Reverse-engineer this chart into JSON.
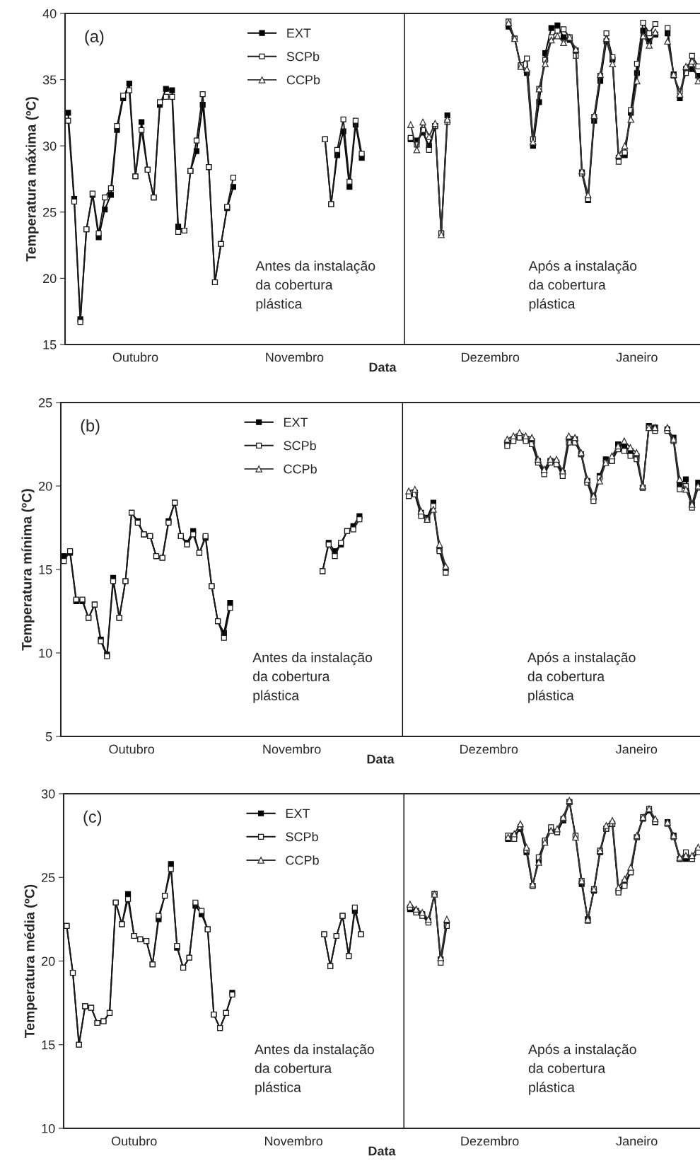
{
  "chart_data": [
    {
      "type": "line",
      "title": "(a)",
      "ylabel": "Temperatura máxima (ºC)",
      "xlabel": "Data",
      "categories": [
        null,
        null,
        null,
        null,
        null,
        null,
        null,
        null,
        null,
        null,
        null,
        "Outubro",
        null,
        null,
        null,
        null,
        null,
        null,
        null,
        null,
        null,
        null,
        null,
        null,
        null,
        null,
        null,
        null,
        null,
        null,
        null,
        null,
        null,
        null,
        null,
        null,
        null,
        "Novembro",
        null,
        null,
        null,
        null,
        null,
        null,
        null,
        null,
        null,
        null,
        null,
        null,
        null,
        null,
        null,
        null,
        null,
        null,
        null,
        null,
        null,
        null,
        null,
        null,
        null,
        null,
        null,
        null,
        null,
        null,
        null,
        "Dezembro",
        null,
        null,
        null,
        null,
        null,
        null,
        null,
        null,
        null,
        null,
        null,
        null,
        null,
        null,
        null,
        null,
        null,
        null,
        null,
        null,
        null,
        null,
        null,
        "Janeiro",
        null,
        null,
        null,
        null,
        null,
        null,
        null,
        null,
        null,
        null
      ],
      "ylim": [
        15,
        40
      ],
      "yticks": [
        15,
        20,
        25,
        30,
        35,
        40
      ],
      "series": [
        {
          "name": "EXT",
          "color": "#000000",
          "marker": "square",
          "values": [
            32.5,
            26.0,
            16.9,
            23.7,
            26.3,
            23.1,
            25.2,
            26.3,
            31.2,
            33.6,
            34.7,
            27.7,
            31.8,
            28.2,
            26.1,
            33.1,
            34.3,
            34.2,
            23.9,
            23.6,
            28.1,
            29.6,
            33.1,
            28.4,
            19.7,
            22.6,
            25.3,
            26.9,
            null,
            null,
            null,
            null,
            null,
            null,
            null,
            null,
            null,
            null,
            null,
            null,
            null,
            null,
            30.5,
            25.6,
            29.3,
            31.1,
            26.9,
            31.6,
            29.1,
            null,
            null,
            null,
            null,
            null,
            null,
            null,
            30.5,
            30.4,
            31.0,
            30.0,
            31.5,
            23.4,
            32.3,
            null,
            null,
            null,
            null,
            null,
            null,
            null,
            null,
            null,
            39.0,
            38.1,
            36.0,
            35.5,
            30.0,
            33.3,
            37.0,
            38.9,
            39.1,
            38.2,
            38.0,
            37.2,
            28.0,
            25.9,
            31.9,
            34.9,
            37.9,
            36.5,
            29.1,
            29.3,
            32.5,
            35.5,
            38.7,
            37.9,
            38.4,
            null,
            38.5,
            35.4,
            33.6,
            35.8,
            35.8,
            35.3
          ]
        },
        {
          "name": "SCPb",
          "color": "#1a1a1a",
          "marker": "square",
          "values": [
            31.9,
            25.8,
            16.7,
            23.7,
            26.4,
            23.4,
            26.1,
            26.8,
            31.5,
            33.8,
            34.2,
            27.7,
            31.2,
            28.2,
            26.1,
            33.3,
            33.7,
            33.7,
            23.5,
            23.6,
            28.1,
            30.4,
            33.9,
            28.4,
            19.7,
            22.6,
            25.4,
            27.6,
            null,
            null,
            null,
            null,
            null,
            null,
            null,
            null,
            null,
            null,
            null,
            null,
            null,
            null,
            30.5,
            25.6,
            29.7,
            32.0,
            27.3,
            31.9,
            29.4,
            null,
            null,
            null,
            null,
            null,
            null,
            null,
            30.6,
            30.1,
            31.2,
            29.7,
            31.5,
            23.4,
            31.8,
            null,
            null,
            null,
            null,
            null,
            null,
            null,
            null,
            null,
            39.4,
            38.1,
            36.1,
            36.6,
            30.5,
            34.3,
            36.5,
            38.2,
            38.7,
            38.8,
            38.2,
            36.8,
            27.9,
            26.0,
            32.2,
            35.3,
            38.5,
            36.7,
            28.8,
            29.5,
            32.7,
            36.2,
            39.3,
            38.5,
            39.2,
            null,
            38.9,
            35.3,
            34.1,
            35.5,
            36.8,
            36.0
          ]
        },
        {
          "name": "CCPb",
          "color": "#333333",
          "marker": "triangle",
          "values": [
            null,
            null,
            null,
            null,
            null,
            null,
            null,
            null,
            null,
            null,
            null,
            null,
            null,
            null,
            null,
            null,
            null,
            null,
            null,
            null,
            null,
            null,
            null,
            null,
            null,
            null,
            null,
            null,
            null,
            null,
            null,
            null,
            null,
            null,
            null,
            null,
            null,
            null,
            null,
            null,
            null,
            null,
            null,
            null,
            null,
            null,
            null,
            null,
            null,
            null,
            null,
            null,
            null,
            null,
            null,
            null,
            31.6,
            29.7,
            31.8,
            30.7,
            31.7,
            23.3,
            32.0,
            null,
            null,
            null,
            null,
            null,
            null,
            null,
            null,
            null,
            39.3,
            38.1,
            36.0,
            35.8,
            30.3,
            34.3,
            36.2,
            38.0,
            38.3,
            37.8,
            38.2,
            37.3,
            28.1,
            26.3,
            32.3,
            35.4,
            38.1,
            36.2,
            29.3,
            30.0,
            32.0,
            34.9,
            38.3,
            37.6,
            38.6,
            null,
            37.9,
            35.4,
            33.9,
            36.0,
            36.4,
            34.9
          ]
        }
      ],
      "annotations": [
        "Antes da instalação\nda cobertura\nplástica",
        "Após a instalação\nda cobertura\nplástica"
      ],
      "legend": "top left",
      "line_style": "solid",
      "grid": false
    },
    {
      "type": "line",
      "title": "(b)",
      "ylabel": "Temperatura mínima (ºC)",
      "xlabel": "Data",
      "categories": [
        null,
        null,
        null,
        null,
        null,
        null,
        null,
        null,
        null,
        null,
        null,
        "Outubro",
        null,
        null,
        null,
        null,
        null,
        null,
        null,
        null,
        null,
        null,
        null,
        null,
        null,
        null,
        null,
        null,
        null,
        null,
        null,
        null,
        null,
        null,
        null,
        null,
        null,
        "Novembro",
        null,
        null,
        null,
        null,
        null,
        null,
        null,
        null,
        null,
        null,
        null,
        null,
        null,
        null,
        null,
        null,
        null,
        null,
        null,
        null,
        null,
        null,
        null,
        null,
        null,
        null,
        null,
        null,
        null,
        null,
        null,
        "Dezembro",
        null,
        null,
        null,
        null,
        null,
        null,
        null,
        null,
        null,
        null,
        null,
        null,
        null,
        null,
        null,
        null,
        null,
        null,
        null,
        null,
        null,
        null,
        null,
        "Janeiro",
        null,
        null,
        null,
        null,
        null,
        null,
        null,
        null,
        null,
        null
      ],
      "ylim": [
        5,
        25
      ],
      "yticks": [
        5,
        10,
        15,
        20,
        25
      ],
      "series": [
        {
          "name": "EXT",
          "color": "#000000",
          "marker": "square",
          "values": [
            15.8,
            16.0,
            13.1,
            13.1,
            12.1,
            12.9,
            10.8,
            9.9,
            14.5,
            12.1,
            14.3,
            18.4,
            17.9,
            17.1,
            17.0,
            15.8,
            15.7,
            17.9,
            19.0,
            17.0,
            16.6,
            17.3,
            16.0,
            16.9,
            14.0,
            11.9,
            11.2,
            13.0,
            null,
            null,
            null,
            null,
            null,
            null,
            null,
            null,
            null,
            null,
            null,
            null,
            null,
            null,
            14.9,
            16.6,
            16.1,
            16.5,
            17.3,
            17.6,
            18.2,
            null,
            null,
            null,
            null,
            null,
            null,
            null,
            19.4,
            19.6,
            18.4,
            18.1,
            19.0,
            16.2,
            15.0,
            null,
            null,
            null,
            null,
            null,
            null,
            null,
            null,
            null,
            22.6,
            22.8,
            23.0,
            22.8,
            22.7,
            21.5,
            20.9,
            21.5,
            21.4,
            20.8,
            22.8,
            22.8,
            21.9,
            20.3,
            19.3,
            20.6,
            21.6,
            21.5,
            22.5,
            22.4,
            22.1,
            21.8,
            19.9,
            23.6,
            23.5,
            null,
            23.4,
            22.9,
            20.1,
            20.4,
            18.9,
            20.2
          ]
        },
        {
          "name": "SCPb",
          "color": "#1a1a1a",
          "marker": "square",
          "values": [
            15.5,
            16.1,
            13.2,
            13.2,
            12.1,
            12.9,
            10.7,
            9.8,
            14.3,
            12.1,
            14.3,
            18.4,
            17.8,
            17.1,
            17.0,
            15.8,
            15.7,
            17.8,
            19.0,
            17.0,
            16.5,
            17.1,
            16.0,
            17.0,
            14.0,
            11.9,
            10.9,
            12.7,
            null,
            null,
            null,
            null,
            null,
            null,
            null,
            null,
            null,
            null,
            null,
            null,
            null,
            null,
            14.9,
            16.5,
            15.8,
            16.6,
            17.3,
            17.4,
            18.0,
            null,
            null,
            null,
            null,
            null,
            null,
            null,
            19.4,
            19.5,
            18.2,
            18.0,
            18.8,
            16.1,
            14.8,
            null,
            null,
            null,
            null,
            null,
            null,
            null,
            null,
            null,
            22.4,
            22.7,
            22.9,
            22.7,
            22.5,
            21.4,
            20.7,
            21.4,
            21.3,
            20.6,
            22.6,
            22.6,
            21.9,
            20.2,
            19.1,
            20.5,
            21.4,
            21.5,
            22.2,
            22.1,
            21.8,
            21.6,
            19.9,
            23.5,
            23.3,
            null,
            23.3,
            22.7,
            19.8,
            20.0,
            18.7,
            19.9
          ]
        },
        {
          "name": "CCPb",
          "color": "#333333",
          "marker": "triangle",
          "values": [
            null,
            null,
            null,
            null,
            null,
            null,
            null,
            null,
            null,
            null,
            null,
            null,
            null,
            null,
            null,
            null,
            null,
            null,
            null,
            null,
            null,
            null,
            null,
            null,
            null,
            null,
            null,
            null,
            null,
            null,
            null,
            null,
            null,
            null,
            null,
            null,
            null,
            null,
            null,
            null,
            null,
            null,
            null,
            null,
            null,
            null,
            null,
            null,
            null,
            null,
            null,
            null,
            null,
            null,
            null,
            null,
            19.7,
            19.8,
            18.5,
            18.0,
            18.6,
            16.5,
            15.2,
            null,
            null,
            null,
            null,
            null,
            null,
            null,
            null,
            null,
            22.8,
            23.0,
            23.2,
            23.0,
            22.9,
            21.6,
            21.0,
            21.6,
            21.6,
            20.9,
            23.0,
            22.9,
            22.0,
            20.4,
            19.4,
            20.3,
            21.4,
            21.8,
            22.4,
            22.7,
            22.3,
            22.0,
            20.0,
            23.5,
            23.5,
            null,
            23.5,
            22.8,
            20.4,
            19.8,
            18.9,
            20.0
          ]
        }
      ],
      "annotations": [
        "Antes da instalação\nda cobertura\nplástica",
        "Após a instalação\nda cobertura\nplástica"
      ],
      "legend": "top left",
      "line_style": "solid",
      "grid": false
    },
    {
      "type": "line",
      "title": "(c)",
      "ylabel": "Temperatura média (ºC)",
      "xlabel": "Data",
      "categories": [
        null,
        null,
        null,
        null,
        null,
        null,
        null,
        null,
        null,
        null,
        null,
        "Outubro",
        null,
        null,
        null,
        null,
        null,
        null,
        null,
        null,
        null,
        null,
        null,
        null,
        null,
        null,
        null,
        null,
        null,
        null,
        null,
        null,
        null,
        null,
        null,
        null,
        null,
        "Novembro",
        null,
        null,
        null,
        null,
        null,
        null,
        null,
        null,
        null,
        null,
        null,
        null,
        null,
        null,
        null,
        null,
        null,
        null,
        null,
        null,
        null,
        null,
        null,
        null,
        null,
        null,
        null,
        null,
        null,
        null,
        null,
        "Dezembro",
        null,
        null,
        null,
        null,
        null,
        null,
        null,
        null,
        null,
        null,
        null,
        null,
        null,
        null,
        null,
        null,
        null,
        null,
        null,
        null,
        null,
        null,
        null,
        "Janeiro",
        null,
        null,
        null,
        null,
        null,
        null,
        null,
        null,
        null,
        null
      ],
      "ylim": [
        10,
        30
      ],
      "yticks": [
        10,
        15,
        20,
        25,
        30
      ],
      "series": [
        {
          "name": "EXT",
          "color": "#000000",
          "marker": "square",
          "values": [
            22.1,
            19.3,
            15.0,
            17.3,
            17.2,
            16.3,
            16.4,
            16.9,
            23.5,
            22.2,
            24.0,
            21.5,
            21.3,
            21.2,
            19.8,
            22.5,
            23.9,
            25.8,
            20.8,
            19.6,
            20.2,
            23.3,
            22.8,
            21.9,
            16.8,
            16.0,
            16.9,
            18.1,
            null,
            null,
            null,
            null,
            null,
            null,
            null,
            null,
            null,
            null,
            null,
            null,
            null,
            null,
            21.6,
            19.7,
            21.5,
            22.7,
            20.3,
            23.0,
            21.6,
            null,
            null,
            null,
            null,
            null,
            null,
            null,
            23.1,
            23.0,
            22.8,
            22.4,
            24.0,
            20.1,
            22.2,
            null,
            null,
            null,
            null,
            null,
            null,
            null,
            null,
            null,
            27.3,
            27.5,
            27.9,
            26.5,
            24.5,
            26.0,
            27.1,
            27.8,
            27.7,
            28.4,
            29.5,
            27.4,
            24.6,
            22.5,
            24.2,
            26.5,
            27.9,
            28.2,
            24.2,
            24.7,
            25.3,
            27.4,
            28.5,
            29.0,
            28.3,
            null,
            28.3,
            27.5,
            26.1,
            26.1,
            26.1,
            26.6
          ]
        },
        {
          "name": "SCPb",
          "color": "#1a1a1a",
          "marker": "square",
          "values": [
            22.1,
            19.3,
            15.0,
            17.3,
            17.2,
            16.3,
            16.4,
            16.9,
            23.5,
            22.2,
            23.7,
            21.5,
            21.3,
            21.2,
            19.8,
            22.7,
            23.9,
            25.5,
            20.9,
            19.6,
            20.2,
            23.5,
            23.0,
            21.9,
            16.8,
            16.0,
            16.9,
            18.0,
            null,
            null,
            null,
            null,
            null,
            null,
            null,
            null,
            null,
            null,
            null,
            null,
            null,
            null,
            21.6,
            19.7,
            21.5,
            22.7,
            20.3,
            23.2,
            21.6,
            null,
            null,
            null,
            null,
            null,
            null,
            null,
            23.2,
            22.9,
            22.7,
            22.3,
            24.0,
            19.9,
            22.1,
            null,
            null,
            null,
            null,
            null,
            null,
            null,
            null,
            null,
            27.5,
            27.3,
            28.0,
            26.6,
            24.5,
            26.2,
            27.2,
            28.0,
            27.7,
            28.5,
            29.5,
            27.5,
            24.8,
            22.4,
            24.3,
            26.6,
            27.9,
            28.2,
            24.1,
            24.5,
            25.3,
            27.4,
            28.6,
            29.1,
            28.3,
            null,
            28.2,
            27.4,
            26.1,
            26.5,
            26.1,
            26.5
          ]
        },
        {
          "name": "CCPb",
          "color": "#333333",
          "marker": "triangle",
          "values": [
            null,
            null,
            null,
            null,
            null,
            null,
            null,
            null,
            null,
            null,
            null,
            null,
            null,
            null,
            null,
            null,
            null,
            null,
            null,
            null,
            null,
            null,
            null,
            null,
            null,
            null,
            null,
            null,
            null,
            null,
            null,
            null,
            null,
            null,
            null,
            null,
            null,
            null,
            null,
            null,
            null,
            null,
            null,
            null,
            null,
            null,
            null,
            null,
            null,
            null,
            null,
            null,
            null,
            null,
            null,
            null,
            23.4,
            23.1,
            22.9,
            22.5,
            24.0,
            20.2,
            22.5,
            null,
            null,
            null,
            null,
            null,
            null,
            null,
            null,
            null,
            27.4,
            27.6,
            28.2,
            26.8,
            24.6,
            25.9,
            27.1,
            27.8,
            27.9,
            28.6,
            29.6,
            27.4,
            24.8,
            22.5,
            24.3,
            26.6,
            28.1,
            28.4,
            24.4,
            24.9,
            25.6,
            27.5,
            28.6,
            29.1,
            28.5,
            null,
            28.3,
            27.5,
            26.2,
            26.3,
            26.3,
            26.8
          ]
        }
      ],
      "annotations": [
        "Antes da instalação\nda cobertura\nplástica",
        "Após a instalação\nda cobertura\nplástica"
      ],
      "legend": "top left",
      "line_style": "solid",
      "grid": false
    }
  ]
}
